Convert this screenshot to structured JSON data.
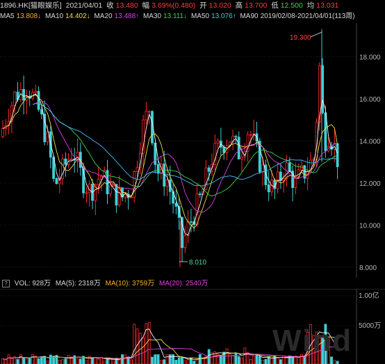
{
  "header": {
    "ticker": "1896.HK[猫眼娱乐]",
    "date": "2021/04/01",
    "close_label": "收",
    "close_value": "13.480",
    "change_label": "幅",
    "change_value": "3.69%(0.480)",
    "open_label": "开",
    "open_value": "13.020",
    "high_label": "高",
    "high_value": "13.700",
    "low_label": "低",
    "low_value": "12.500",
    "avg_label": "均",
    "avg_value": "13.031"
  },
  "ma_row": {
    "ma5_label": "MA5",
    "ma5_value": "13.808↓",
    "ma10_label": "MA10",
    "ma10_value": "14.402↓",
    "ma20_label": "MA20",
    "ma20_value": "13.488↑",
    "ma30_label": "MA30",
    "ma30_value": "13.111↓",
    "ma50_label": "MA50",
    "ma50_value": "13.076↑",
    "ma90_label": "MA90",
    "range_text": "2019/02/08-2021/04/01(113周)"
  },
  "price_axis": {
    "ticks": [
      "18.000",
      "16.000",
      "14.000",
      "12.000",
      "10.000",
      "8.000"
    ],
    "ylim": [
      7.5,
      19.6
    ]
  },
  "annotations": {
    "high_marker": "19.300",
    "low_marker": "8.010"
  },
  "volume_header": {
    "vol_label": "VOL: 928万",
    "ma5_label": "MA(5): 2318万",
    "ma10_label": "MA(10): 3759万",
    "ma20_label": "MA(20): 2540万"
  },
  "volume_axis": {
    "ticks": [
      "1.00亿",
      "5000万"
    ]
  },
  "watermark": "Wind",
  "colors": {
    "up": "#ff2a2a",
    "down": "#3fd0d8",
    "ma5": "#f5f5f5",
    "ma10": "#f0e040",
    "ma20": "#e040e0",
    "ma30": "#3fd44a",
    "ma50": "#40c0ff",
    "ma90": "#e8c060"
  }
}
